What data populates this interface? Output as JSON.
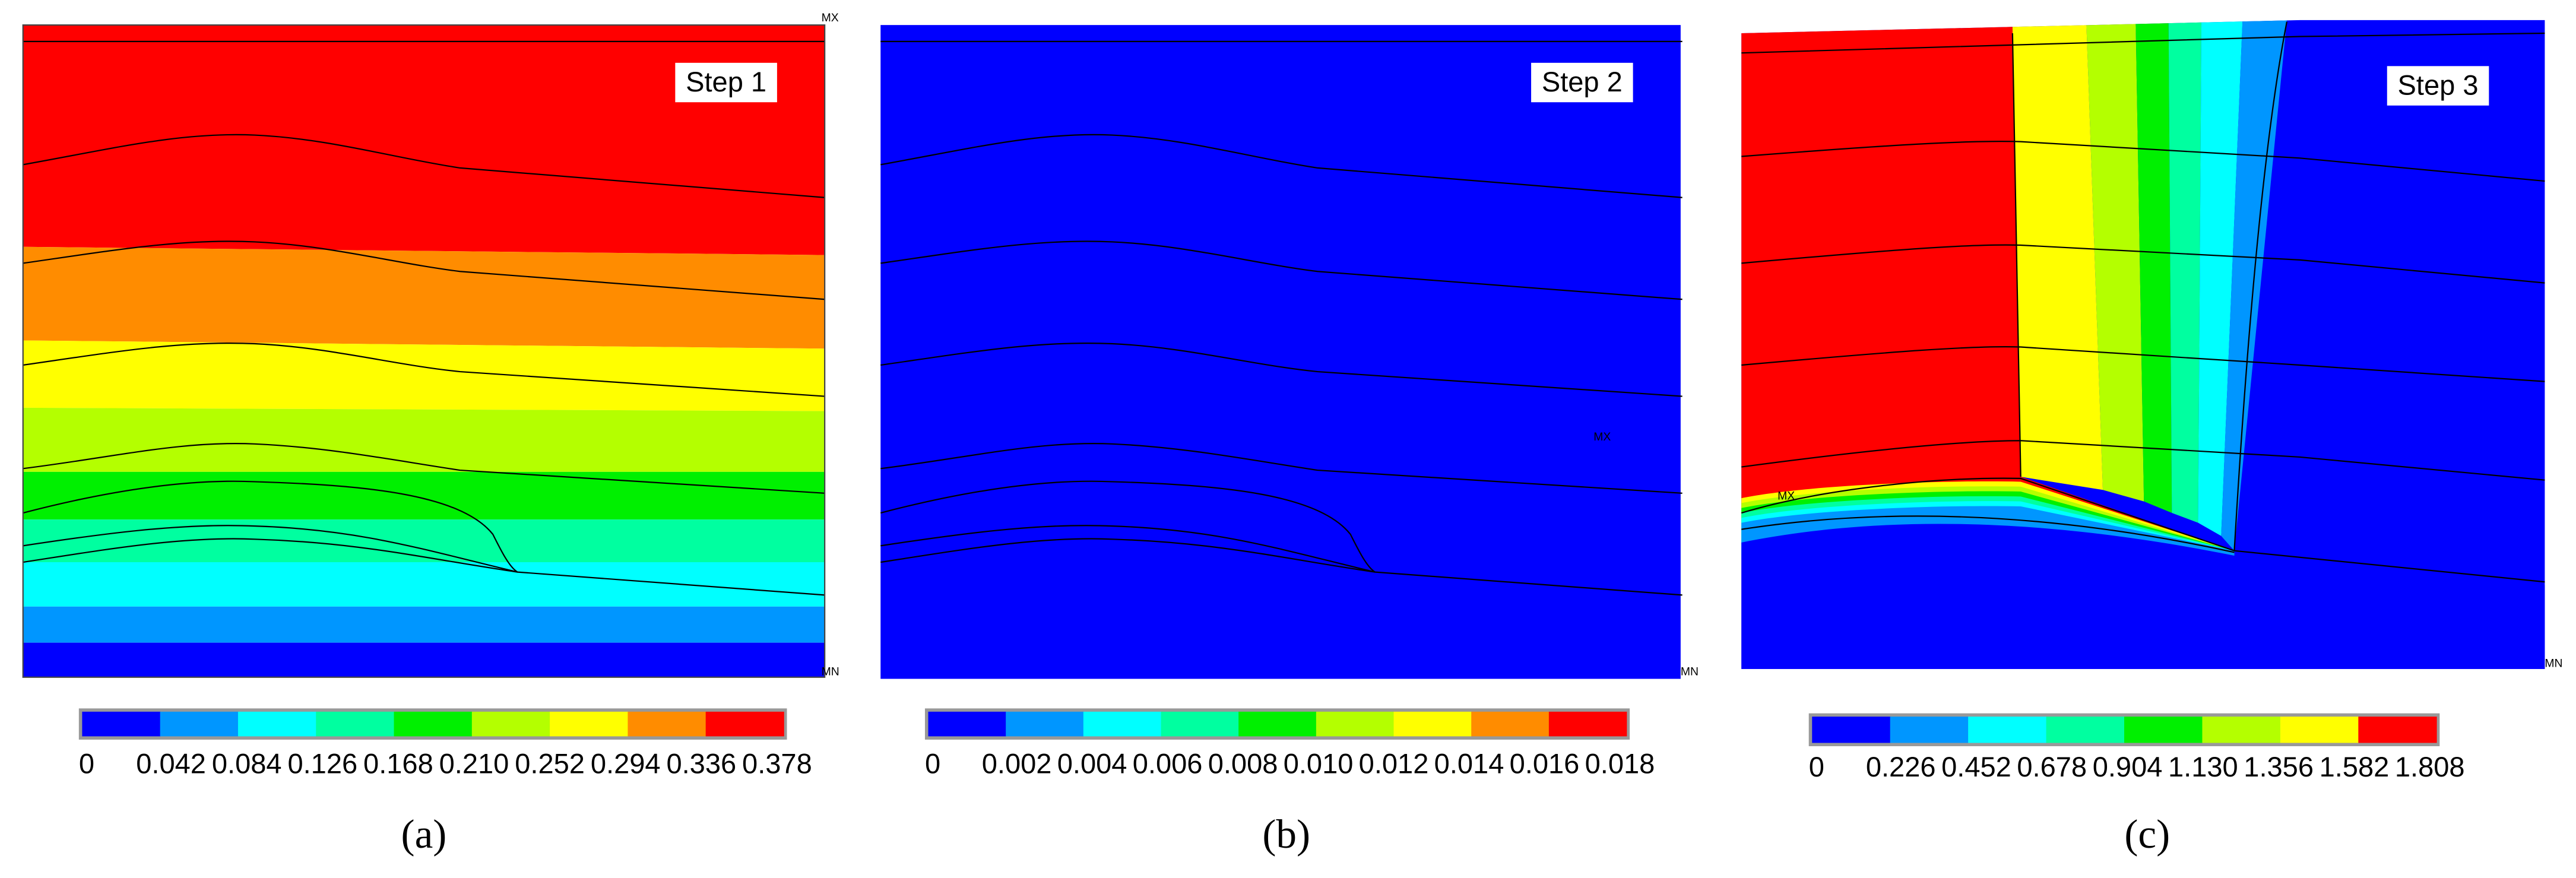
{
  "panels": [
    {
      "step": "Step 1",
      "caption": "(a)",
      "max_label": "MX",
      "min_label": "MN",
      "colors": [
        "#0000ff",
        "#0096ff",
        "#00ffff",
        "#00ffa0",
        "#00f000",
        "#b4ff00",
        "#ffff00",
        "#ff8c00",
        "#ff0000"
      ],
      "legend": [
        "0",
        "0.042",
        "0.084",
        "0.126",
        "0.168",
        "0.210",
        "0.252",
        "0.294",
        "0.336",
        "0.378"
      ]
    },
    {
      "step": "Step 2",
      "caption": "(b)",
      "max_label": "MX",
      "min_label": "MN",
      "colors": [
        "#0000ff",
        "#0096ff",
        "#00ffff",
        "#00ffa0",
        "#00f000",
        "#b4ff00",
        "#ffff00",
        "#ff8c00",
        "#ff0000"
      ],
      "legend": [
        "0",
        "0.002",
        "0.004",
        "0.006",
        "0.008",
        "0.010",
        "0.012",
        "0.014",
        "0.016",
        "0.018"
      ]
    },
    {
      "step": "Step 3",
      "caption": "(c)",
      "max_label": "MX",
      "min_label": "MN",
      "colors": [
        "#0000ff",
        "#0096ff",
        "#00ffff",
        "#00ffa0",
        "#00f000",
        "#b4ff00",
        "#ffff00",
        "#ff0000"
      ],
      "legend": [
        "0",
        "0.226",
        "0.452",
        "0.678",
        "0.904",
        "1.130",
        "1.356",
        "1.582",
        "1.808"
      ]
    }
  ]
}
